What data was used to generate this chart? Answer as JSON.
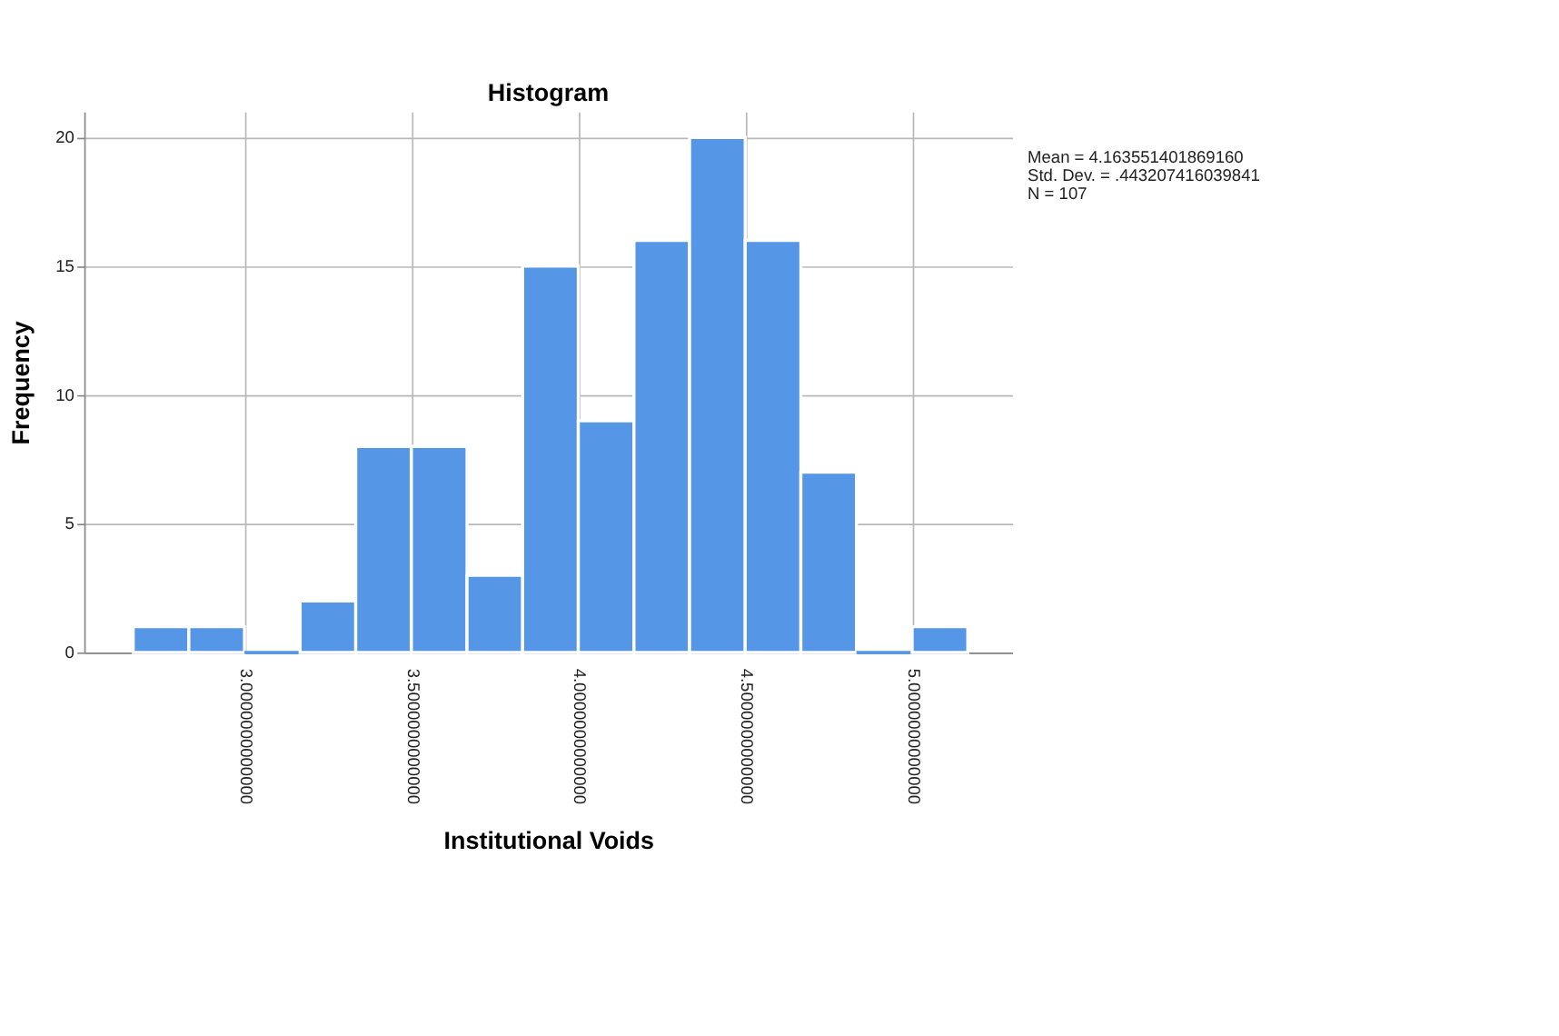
{
  "chart_data": {
    "type": "histogram",
    "title": "Histogram",
    "xlabel": "Institutional Voids",
    "ylabel": "Frequency",
    "bins": [
      2.6667,
      2.8333,
      3.0,
      3.1667,
      3.3333,
      3.5,
      3.6667,
      3.8333,
      4.0,
      4.1667,
      4.3333,
      4.5,
      4.6667,
      4.8333,
      5.0,
      5.1667
    ],
    "values": [
      1,
      1,
      0,
      2,
      8,
      8,
      3,
      15,
      9,
      16,
      20,
      16,
      7,
      0,
      1
    ],
    "color": "#5596e6",
    "xlim": [
      2.52,
      5.3
    ],
    "ylim": [
      0,
      21
    ],
    "xticks": [
      {
        "value": 3.0,
        "label": "3.0000000000000"
      },
      {
        "value": 3.5,
        "label": "3.5000000000000"
      },
      {
        "value": 4.0,
        "label": "4.0000000000000"
      },
      {
        "value": 4.5,
        "label": "4.5000000000000"
      },
      {
        "value": 5.0,
        "label": "5.0000000000000"
      }
    ],
    "yticks": [
      0,
      5,
      10,
      15,
      20
    ],
    "grid": true,
    "annotations": [
      "Mean = 4.163551401869160",
      "Std. Dev. = .443207416039841",
      "N = 107"
    ]
  }
}
